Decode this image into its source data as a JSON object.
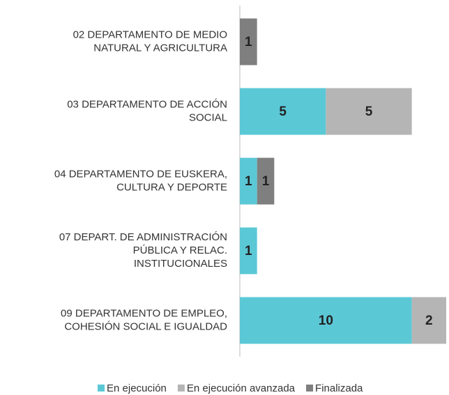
{
  "chart_data": {
    "type": "bar",
    "orientation": "horizontal",
    "stacked": true,
    "categories": [
      [
        "02 DEPARTAMENTO DE MEDIO",
        "NATURAL Y AGRICULTURA"
      ],
      [
        "03 DEPARTAMENTO DE ACCIÓN",
        "SOCIAL"
      ],
      [
        "04 DEPARTAMENTO DE EUSKERA,",
        "CULTURA Y DEPORTE"
      ],
      [
        "07 DEPART. DE ADMINISTRACIÓN",
        "PÚBLICA Y RELAC.",
        "INSTITUCIONALES"
      ],
      [
        "09 DEPARTAMENTO DE EMPLEO,",
        "COHESIÓN SOCIAL E IGUALDAD"
      ]
    ],
    "series": [
      {
        "name": "En ejecución",
        "color": "#5bc8d6",
        "values": [
          0,
          5,
          1,
          1,
          10
        ]
      },
      {
        "name": "En ejecución avanzada",
        "color": "#b5b5b5",
        "values": [
          0,
          5,
          0,
          0,
          2
        ]
      },
      {
        "name": "Finalizada",
        "color": "#7f7f7f",
        "values": [
          1,
          0,
          1,
          0,
          0
        ]
      }
    ],
    "legend": "bottom"
  }
}
